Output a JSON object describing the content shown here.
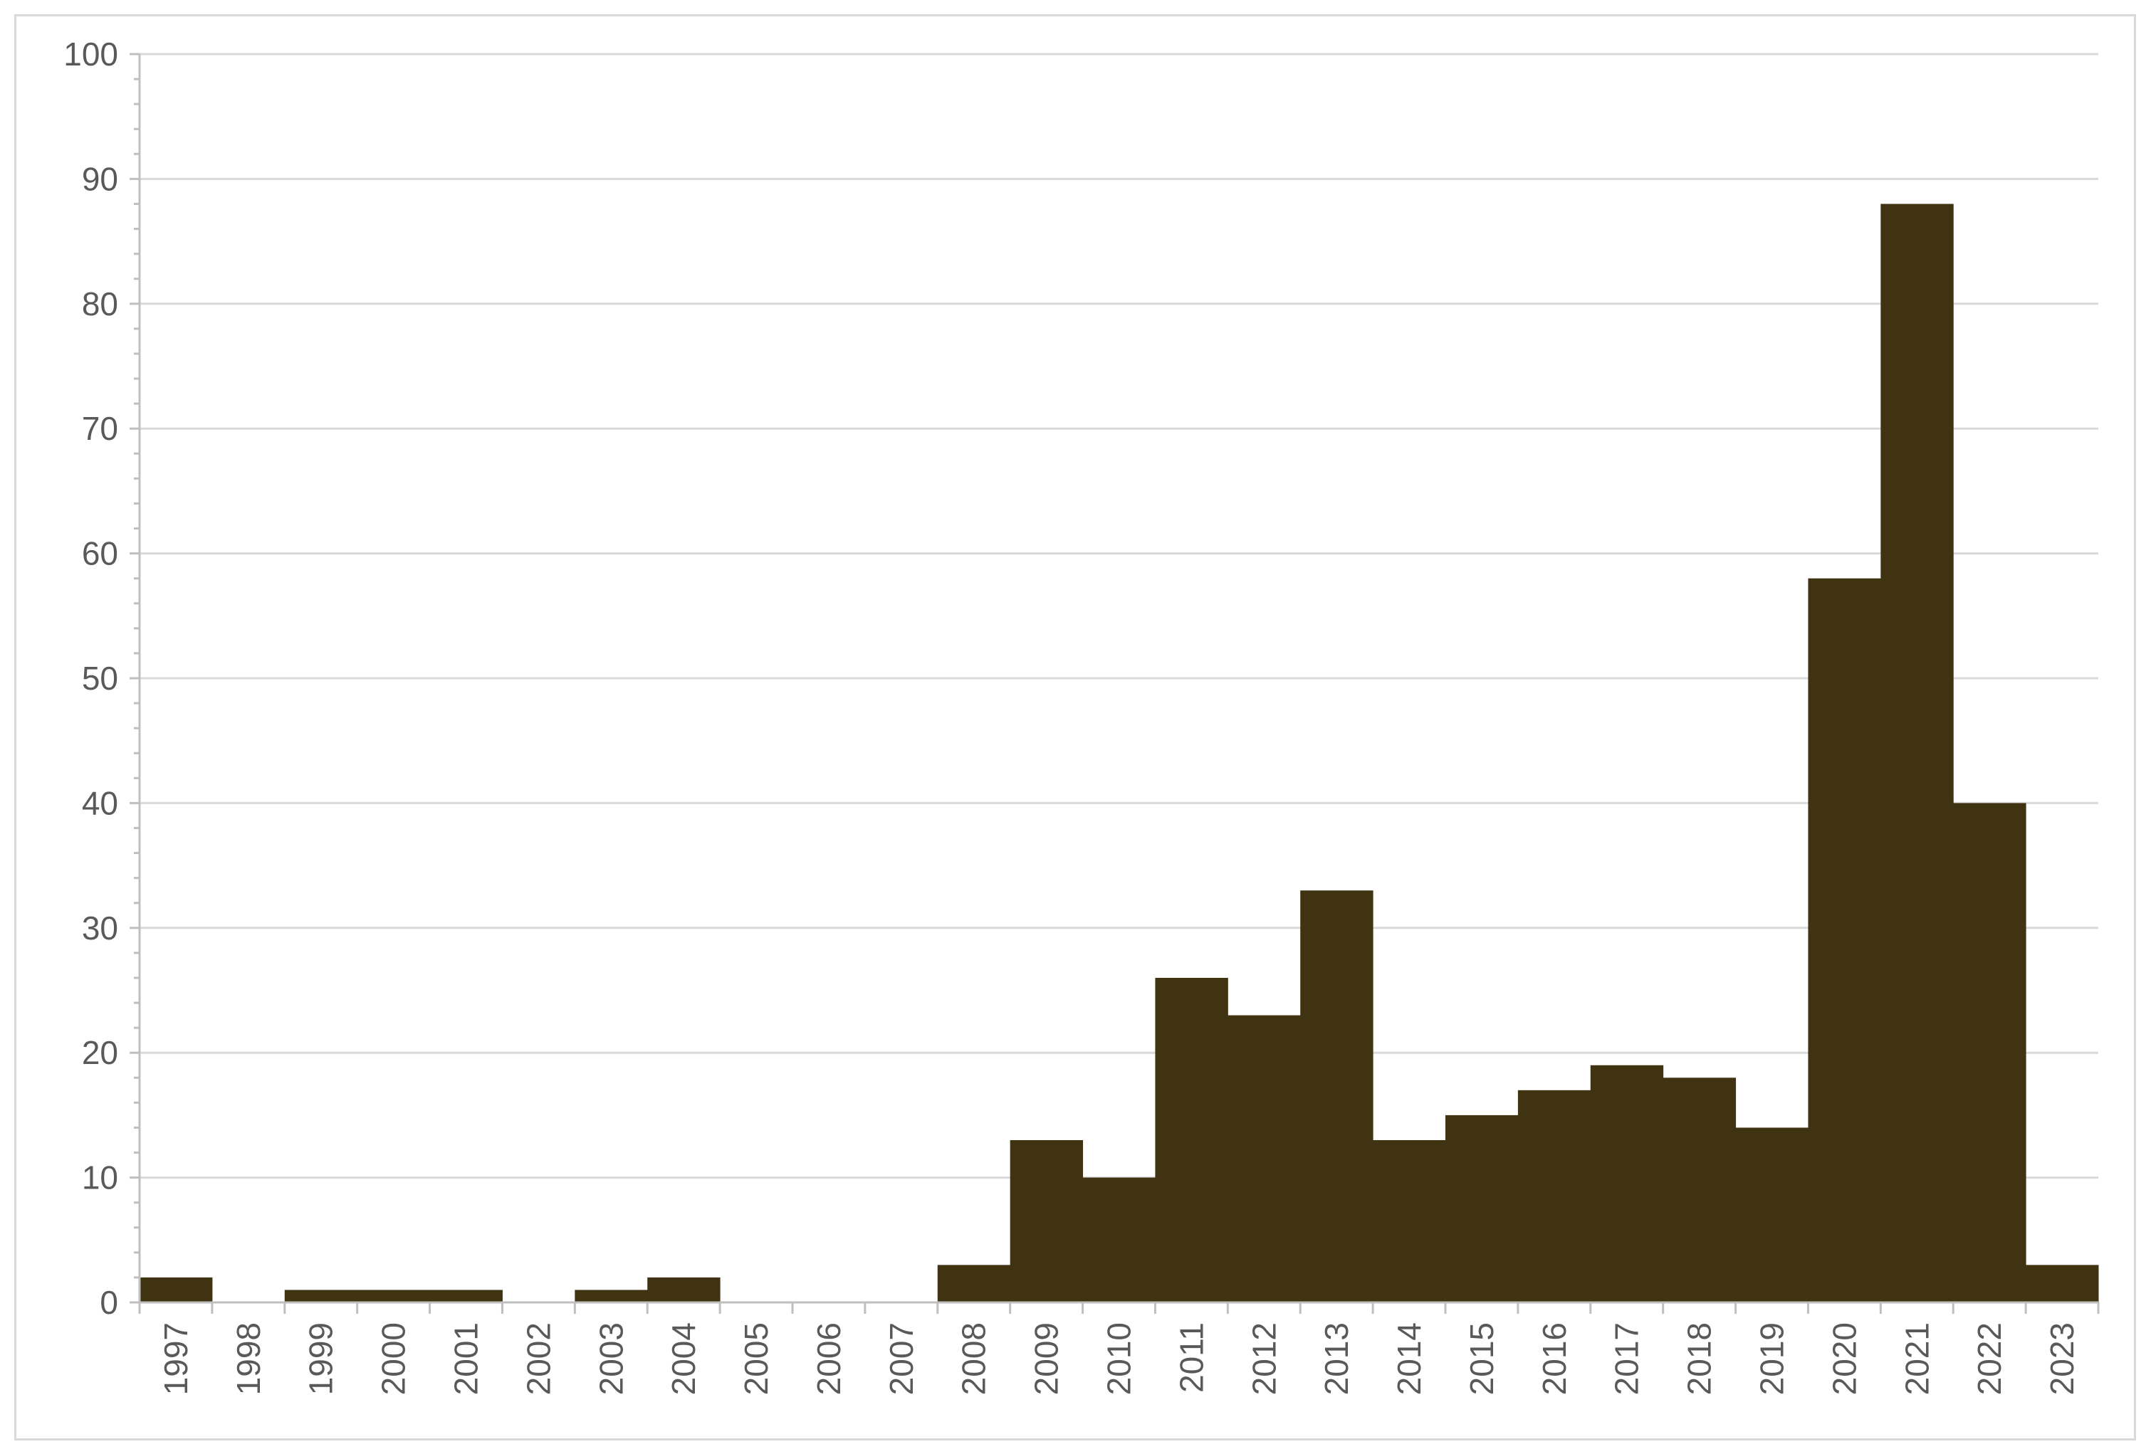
{
  "chart_data": {
    "type": "bar",
    "title": "",
    "xlabel": "",
    "ylabel": "",
    "categories": [
      "1997",
      "1998",
      "1999",
      "2000",
      "2001",
      "2002",
      "2003",
      "2004",
      "2005",
      "2006",
      "2007",
      "2008",
      "2009",
      "2010",
      "2011",
      "2012",
      "2013",
      "2014",
      "2015",
      "2016",
      "2017",
      "2018",
      "2019",
      "2020",
      "2021",
      "2022",
      "2023"
    ],
    "values": [
      2,
      0,
      1,
      1,
      1,
      0,
      1,
      2,
      0,
      0,
      0,
      3,
      13,
      10,
      26,
      23,
      33,
      13,
      15,
      17,
      19,
      18,
      14,
      58,
      88,
      40,
      3
    ],
    "ylim": [
      0,
      100
    ],
    "yticks": [
      "0",
      "10",
      "20",
      "30",
      "40",
      "50",
      "60",
      "70",
      "80",
      "90",
      "100"
    ],
    "grid": true,
    "legend": "none",
    "bar_gap": 0,
    "colors": {
      "bar": "#3f3312",
      "grid": "#d9d9d9",
      "axis": "#bfbfbf",
      "text": "#595959"
    }
  }
}
